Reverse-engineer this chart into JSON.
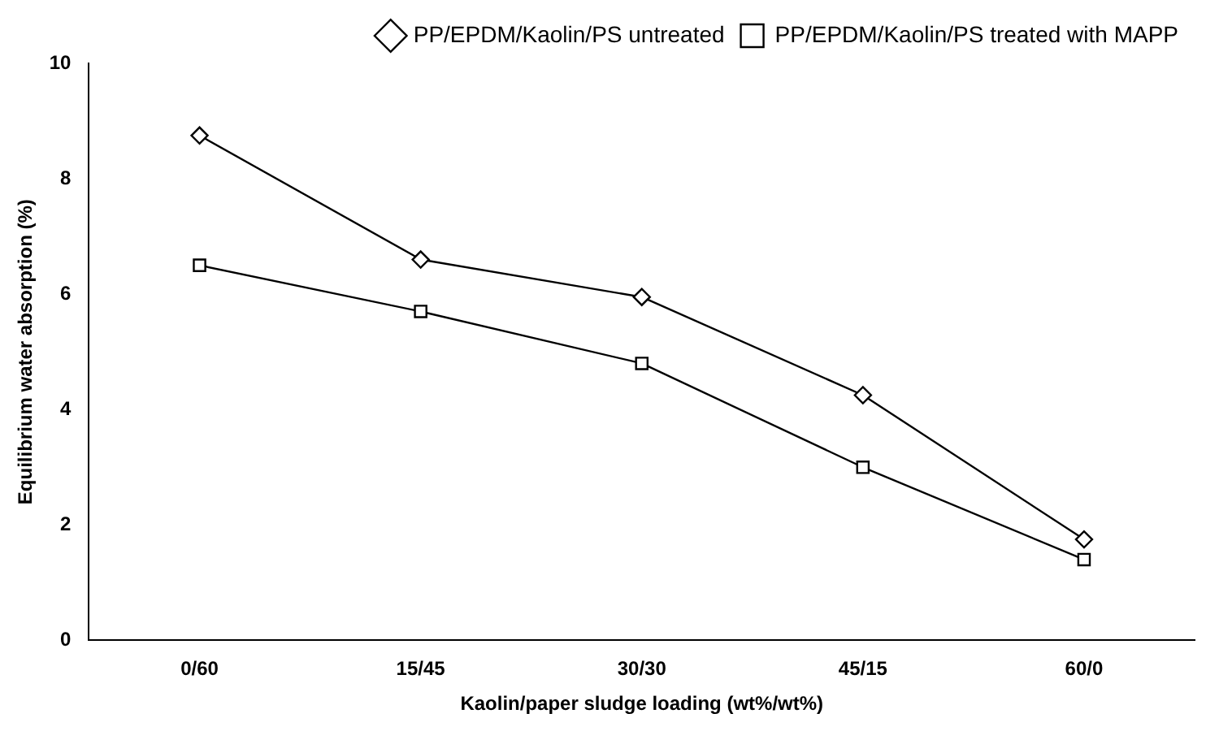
{
  "chart_data": {
    "type": "line",
    "xlabel": "Kaolin/paper sludge loading (wt%/wt%)",
    "ylabel": "Equilibrium water absorption (%)",
    "categories": [
      "0/60",
      "15/45",
      "30/30",
      "45/15",
      "60/0"
    ],
    "series": [
      {
        "name": "PP/EPDM/Kaolin/PS untreated",
        "color": "#000000",
        "marker": "diamond",
        "values": [
          8.75,
          6.6,
          5.95,
          4.25,
          1.75
        ]
      },
      {
        "name": "PP/EPDM/Kaolin/PS treated with MAPP",
        "color": "#000000",
        "marker": "square",
        "values": [
          6.5,
          5.7,
          4.8,
          3.0,
          1.4
        ]
      }
    ],
    "ylim": [
      0,
      10
    ],
    "yticks": [
      0,
      2,
      4,
      6,
      8,
      10
    ],
    "grid": false,
    "legend": "top right",
    "line_style": "solid"
  }
}
